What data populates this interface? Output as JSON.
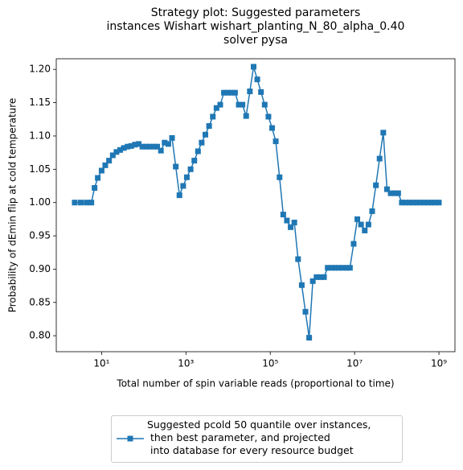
{
  "chart_data": {
    "type": "line",
    "title": "Strategy plot: Suggested parameters\ninstances Wishart wishart_planting_N_80_alpha_0.40\nsolver pysa",
    "x_label": "Total number of spin variable reads (proportional to time)",
    "y_label": "Probability of dEmin flip at cold temperature",
    "x_scale": "log",
    "xlim": [
      0.84,
      2400000000
    ],
    "ylim": [
      0.776,
      1.216
    ],
    "xticks": [
      {
        "value": 10,
        "label": "10¹"
      },
      {
        "value": 1000,
        "label": "10³"
      },
      {
        "value": 100000,
        "label": "10⁵"
      },
      {
        "value": 10000000,
        "label": "10⁷"
      },
      {
        "value": 1000000000,
        "label": "10⁹"
      }
    ],
    "yticks": [
      {
        "value": 0.8,
        "label": "0.80"
      },
      0.85,
      {
        "value": 0.9,
        "label": "0.90"
      },
      0.95,
      {
        "value": 1.0,
        "label": "1.00"
      },
      1.05,
      {
        "value": 1.1,
        "label": "1.10"
      },
      1.15,
      {
        "value": 1.2,
        "label": "1.20"
      }
    ],
    "legend": "lower center outside",
    "x": [
      2.3,
      3.2,
      4.4,
      5.7,
      6.8,
      8.1,
      10,
      12.2,
      15.0,
      18.4,
      22.5,
      27.5,
      33.7,
      41.2,
      50.5,
      61.8,
      75.7,
      92.7,
      113,
      139,
      170,
      208,
      255,
      312,
      382,
      468,
      573,
      701,
      859,
      1050,
      1290,
      1580,
      1930,
      2360,
      2890,
      3540,
      4340,
      5310,
      6500,
      7960,
      9740,
      11900,
      14600,
      17900,
      21900,
      26800,
      32800,
      40200,
      49200,
      60200,
      73700,
      90300,
      110500,
      135000,
      166000,
      203000,
      248000,
      304000,
      372000,
      456000,
      558000,
      683000,
      836000,
      1020000,
      1250000,
      1540000,
      1880000,
      2300000,
      2820000,
      3450000,
      4220000,
      5170000,
      6330000,
      7750000,
      9490000,
      11600000,
      14200000,
      17400000,
      21300000,
      26100000,
      32000000,
      39100000,
      47900000,
      58700000,
      71800000,
      87900000,
      108000000,
      132000000,
      161000000,
      198000000,
      242000000,
      296000000,
      363000000,
      444000000,
      544000000,
      666000000,
      815000000,
      997000000
    ],
    "series": [
      {
        "name": "Suggested pcold 50 quantile over instances,\n then best parameter, and projected\n into database for every resource budget",
        "color": "#1f77b4",
        "marker": "square",
        "values": [
          1.0,
          1.0,
          1.0,
          1.0,
          1.022,
          1.037,
          1.048,
          1.056,
          1.063,
          1.071,
          1.076,
          1.079,
          1.082,
          1.084,
          1.085,
          1.087,
          1.088,
          1.084,
          1.084,
          1.084,
          1.084,
          1.084,
          1.078,
          1.09,
          1.088,
          1.097,
          1.054,
          1.011,
          1.025,
          1.038,
          1.05,
          1.063,
          1.077,
          1.09,
          1.102,
          1.115,
          1.129,
          1.142,
          1.147,
          1.165,
          1.165,
          1.165,
          1.165,
          1.147,
          1.147,
          1.13,
          1.167,
          1.204,
          1.185,
          1.166,
          1.147,
          1.129,
          1.112,
          1.092,
          1.038,
          0.982,
          0.973,
          0.963,
          0.97,
          0.915,
          0.876,
          0.836,
          0.797,
          0.882,
          0.888,
          0.888,
          0.888,
          0.902,
          0.902,
          0.902,
          0.902,
          0.902,
          0.902,
          0.902,
          0.938,
          0.975,
          0.967,
          0.958,
          0.967,
          0.987,
          1.026,
          1.066,
          1.105,
          1.02,
          1.014,
          1.014,
          1.014,
          1.0,
          1.0,
          1.0,
          1.0,
          1.0,
          1.0,
          1.0,
          1.0,
          1.0,
          1.0,
          1.0
        ]
      }
    ]
  }
}
